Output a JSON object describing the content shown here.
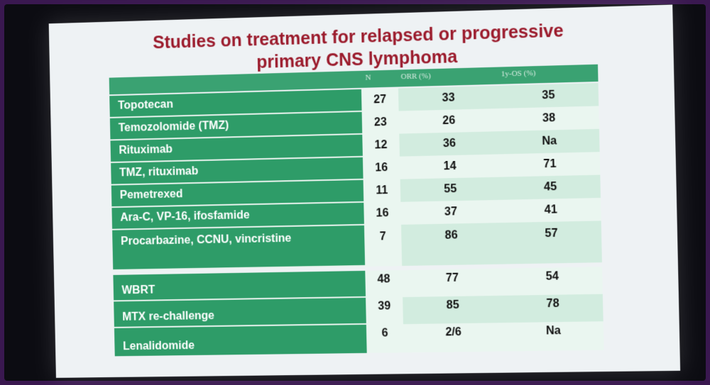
{
  "slide": {
    "title_line1": "Studies on treatment for relapsed or progressive",
    "title_line2": "primary CNS lymphoma"
  },
  "table": {
    "headers": [
      "N",
      "ORR (%)",
      "1y-OS (%)"
    ],
    "rows": [
      {
        "label": "Topotecan",
        "n": "27",
        "orr": "33",
        "os": "35"
      },
      {
        "label": "Temozolomide (TMZ)",
        "n": "23",
        "orr": "26",
        "os": "38"
      },
      {
        "label": "Rituximab",
        "n": "12",
        "orr": "36",
        "os": "Na"
      },
      {
        "label": "TMZ, rituximab",
        "n": "16",
        "orr": "14",
        "os": "71"
      },
      {
        "label": "Pemetrexed",
        "n": "11",
        "orr": "55",
        "os": "45"
      },
      {
        "label": "Ara-C, VP-16, ifosfamide",
        "n": "16",
        "orr": "37",
        "os": "41"
      },
      {
        "label": "Procarbazine, CCNU, vincristine",
        "n": "7",
        "orr": "86",
        "os": "57"
      },
      {
        "label": "WBRT",
        "n": "48",
        "orr": "77",
        "os": "54"
      },
      {
        "label": "MTX re-challenge",
        "n": "39",
        "orr": "85",
        "os": "78"
      },
      {
        "label": "Lenalidomide",
        "n": "6",
        "orr": "2/6",
        "os": "Na"
      }
    ]
  }
}
